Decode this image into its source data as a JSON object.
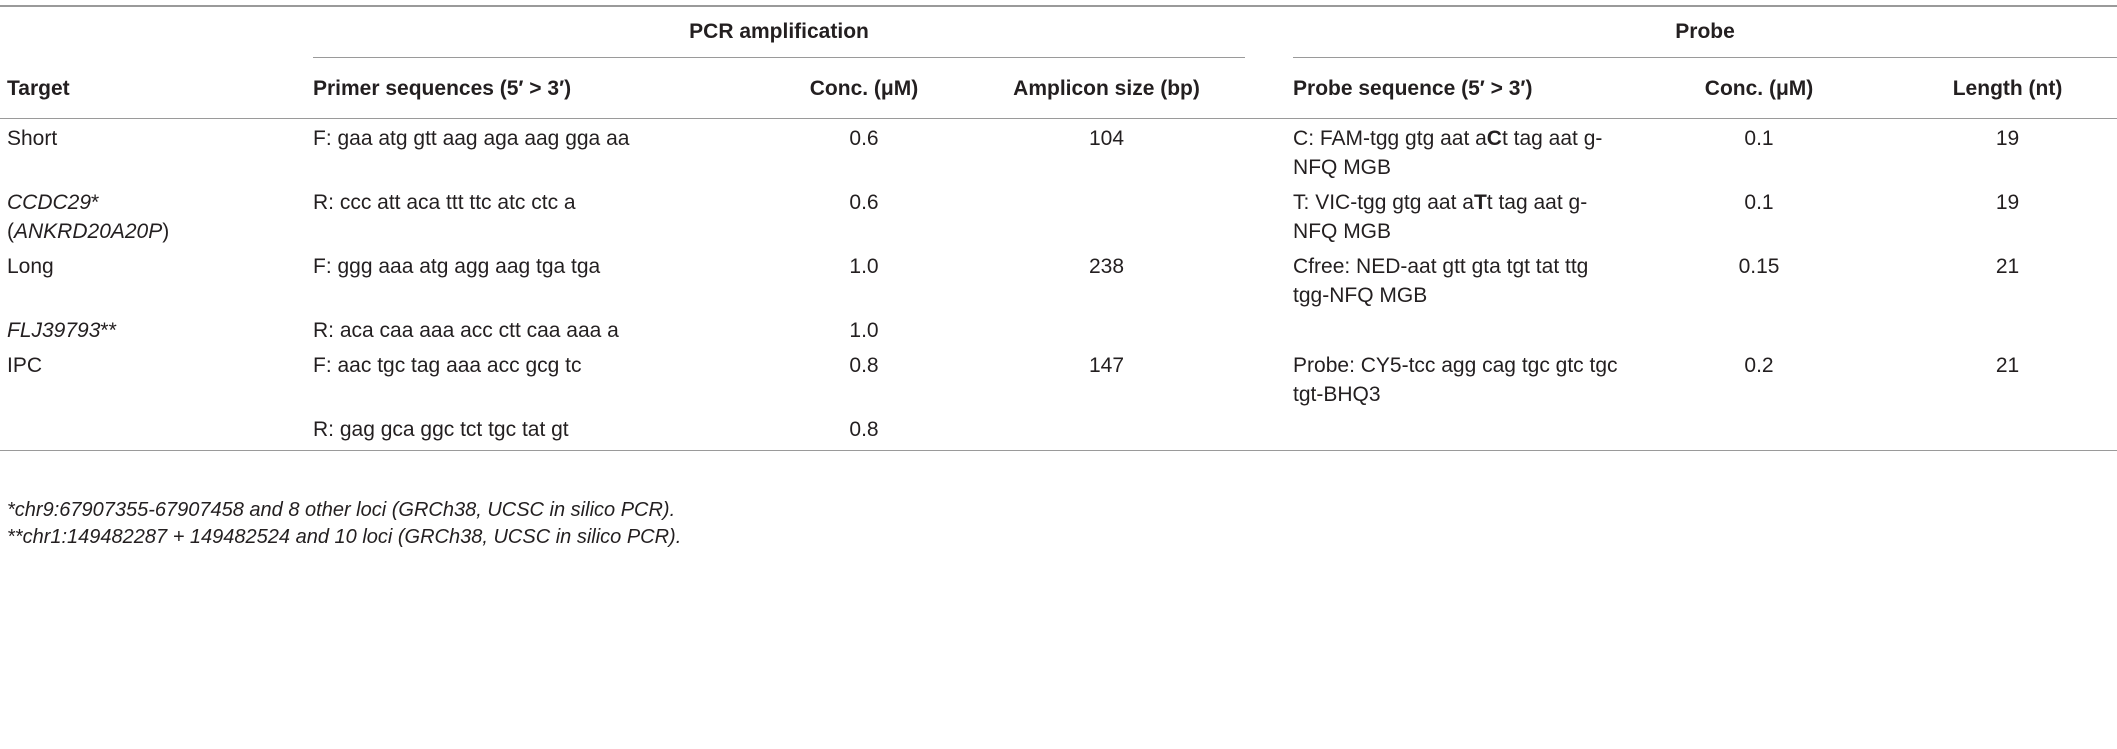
{
  "table": {
    "groups": [
      "PCR amplification",
      "Probe"
    ],
    "columns": [
      "Target",
      "Primer sequences (5′ > 3′)",
      "Conc. (μM)",
      "Amplicon size (bp)",
      "Probe sequence (5′ > 3′)",
      "Conc. (μM)",
      "Length (nt)"
    ],
    "rows": [
      [
        "Short",
        "F: gaa atg gtt aag aga aag gga aa",
        "0.6",
        "104",
        [
          {
            "text": "C: FAM-tgg gtg aat a"
          },
          {
            "text": "C",
            "bold": true
          },
          {
            "text": "t tag aat g-NFQ MGB"
          }
        ],
        "0.1",
        "19"
      ],
      [
        [
          {
            "text": "CCDC29",
            "italic": true
          },
          {
            "text": "* ("
          },
          {
            "text": "ANKRD20A20P",
            "italic": true
          },
          {
            "text": ")"
          }
        ],
        "R: ccc att aca ttt ttc atc ctc a",
        "0.6",
        null,
        [
          {
            "text": "T: VIC-tgg gtg aat a"
          },
          {
            "text": "T",
            "bold": true
          },
          {
            "text": "t tag aat g-NFQ MGB"
          }
        ],
        "0.1",
        "19"
      ],
      [
        "Long",
        "F: ggg aaa atg agg aag tga tga",
        "1.0",
        "238",
        "Cfree: NED-aat gtt gta tgt tat ttg tgg-NFQ MGB",
        "0.15",
        "21"
      ],
      [
        [
          {
            "text": "FLJ39793",
            "italic": true
          },
          {
            "text": "**"
          }
        ],
        "R: aca caa aaa acc ctt caa aaa a",
        "1.0",
        null,
        null,
        null,
        null
      ],
      [
        "IPC",
        "F: aac tgc tag aaa acc gcg tc",
        "0.8",
        "147",
        "Probe: CY5-tcc agg cag tgc gtc tgc tgt-BHQ3",
        "0.2",
        "21"
      ],
      [
        null,
        "R: gag gca ggc tct tgc tat gt",
        "0.8",
        null,
        null,
        null,
        null
      ]
    ],
    "footnotes": [
      "*chr9:67907355-67907458 and 8 other loci (GRCh38, UCSC in silico PCR).",
      "**chr1:149482287 + 149482524 and 10 loci (GRCh38, UCSC in silico PCR)."
    ]
  }
}
